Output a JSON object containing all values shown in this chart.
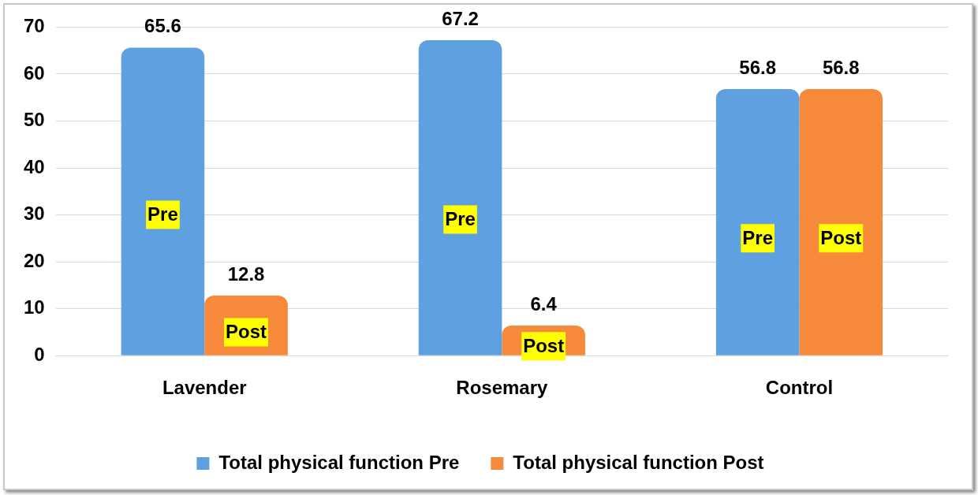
{
  "chart_data": {
    "type": "bar",
    "categories": [
      "Lavender",
      "Rosemary",
      "Control"
    ],
    "series": [
      {
        "name": "Total physical function Pre",
        "color": "#5fa0e0",
        "values": [
          65.6,
          67.2,
          56.8
        ]
      },
      {
        "name": "Total physical function Post",
        "color": "#f78a3a",
        "values": [
          12.8,
          6.4,
          56.8
        ]
      }
    ],
    "ylim": [
      0,
      70
    ],
    "yticks": [
      0,
      10,
      20,
      30,
      40,
      50,
      60,
      70
    ],
    "grid": "y",
    "legend": "bottom",
    "data_labels": true,
    "annotations": [
      {
        "text": "Pre",
        "x": "Lavender",
        "y": 30
      },
      {
        "text": "Post",
        "x": "Lavender",
        "y": 5
      },
      {
        "text": "Pre",
        "x": "Rosemary",
        "y": 29
      },
      {
        "text": "Post",
        "x": "Rosemary",
        "y": 2
      },
      {
        "text": "Pre",
        "x": "Control",
        "y": 25
      },
      {
        "text": "Post",
        "x": "Control",
        "y": 25
      }
    ]
  }
}
